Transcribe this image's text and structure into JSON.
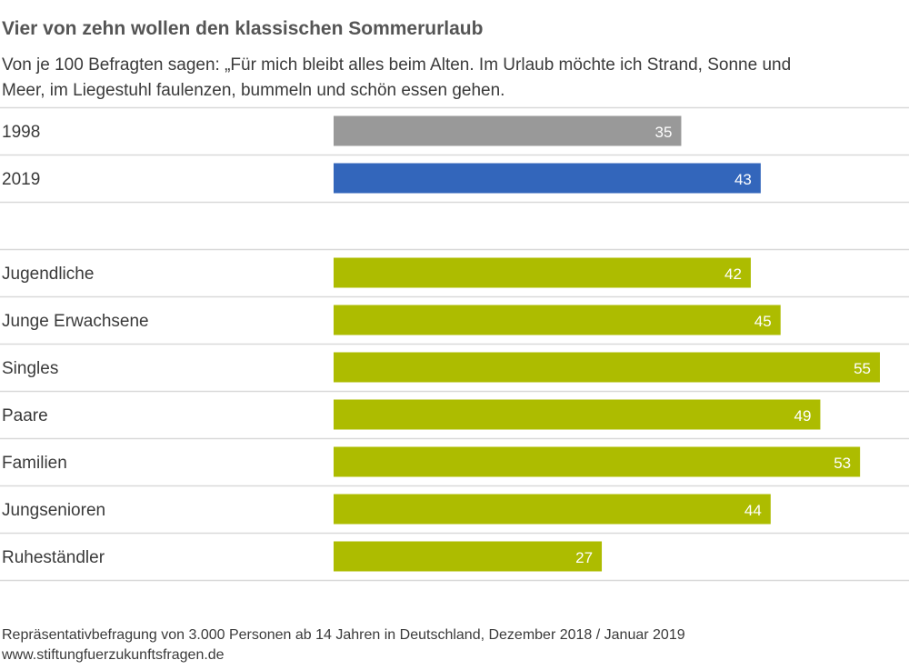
{
  "title": "Vier von zehn wollen den klassischen Sommerurlaub",
  "subtitle": "Von je 100 Befragten sagen: „Für mich bleibt alles beim Alten. Im Urlaub möchte ich Strand, Sonne und Meer, im Liegestuhl faulenzen, bummeln und schön essen gehen.",
  "footer": {
    "source": "Repräsentativbefragung von 3.000 Personen ab 14 Jahren in Deutschland, Dezember 2018 / Januar 2019",
    "url": "www.stiftungfuerzukunftsfragen.de"
  },
  "colors": {
    "gray": "#999999",
    "blue": "#3366bb",
    "green": "#adbc00",
    "rule": "#d9d9d9"
  },
  "chart_data": {
    "type": "bar",
    "orientation": "horizontal",
    "xlim": [
      0,
      55
    ],
    "grid": false,
    "groups": [
      {
        "rows": [
          {
            "label": "1998",
            "value": 35,
            "color": "gray"
          },
          {
            "label": "2019",
            "value": 43,
            "color": "blue"
          }
        ]
      },
      {
        "rows": [
          {
            "label": "Jugendliche",
            "value": 42,
            "color": "green"
          },
          {
            "label": "Junge Erwachsene",
            "value": 45,
            "color": "green"
          },
          {
            "label": "Singles",
            "value": 55,
            "color": "green"
          },
          {
            "label": "Paare",
            "value": 49,
            "color": "green"
          },
          {
            "label": "Familien",
            "value": 53,
            "color": "green"
          },
          {
            "label": "Jungsenioren",
            "value": 44,
            "color": "green"
          },
          {
            "label": "Ruheständler",
            "value": 27,
            "color": "green"
          }
        ]
      }
    ]
  }
}
